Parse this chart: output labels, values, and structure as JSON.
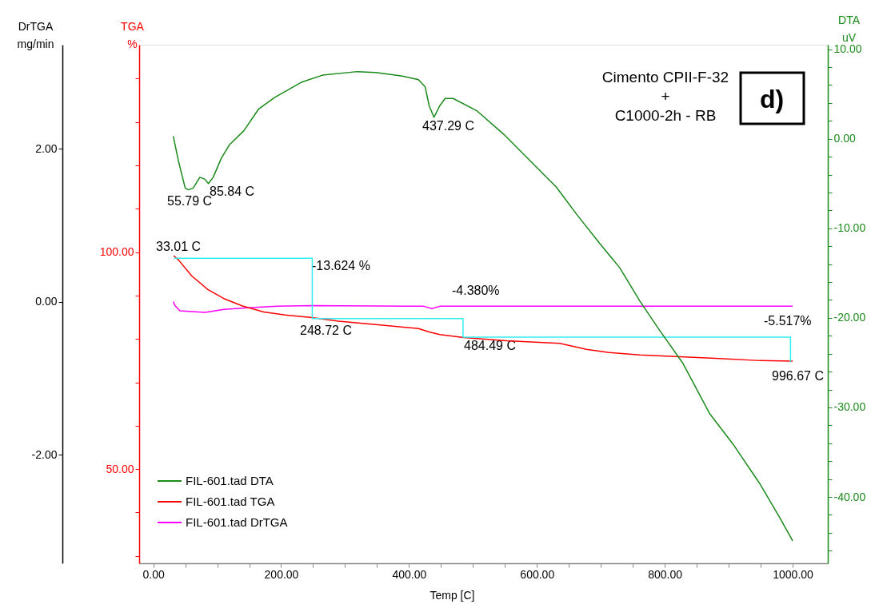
{
  "chart_data": {
    "type": "line",
    "xlabel": "Temp [C]",
    "ylabel": "DrTGA\nmg/min",
    "y2label": "TGA\n%",
    "y3label": "DTA\nuV",
    "xlim": [
      -22,
      1055
    ],
    "ylim": [
      -3.42,
      3.36
    ],
    "y2lim": [
      28.3,
      147.8
    ],
    "y3lim": [
      -47.4,
      10.5
    ],
    "xticks": [
      {
        "value": 0,
        "label": "0.00"
      },
      {
        "value": 50,
        "label": null
      },
      {
        "value": 100,
        "label": null
      },
      {
        "value": 150,
        "label": null
      },
      {
        "value": 200,
        "label": "200.00"
      },
      {
        "value": 250,
        "label": null
      },
      {
        "value": 300,
        "label": null
      },
      {
        "value": 350,
        "label": null
      },
      {
        "value": 400,
        "label": "400.00"
      },
      {
        "value": 450,
        "label": null
      },
      {
        "value": 500,
        "label": null
      },
      {
        "value": 550,
        "label": null
      },
      {
        "value": 600,
        "label": "600.00"
      },
      {
        "value": 650,
        "label": null
      },
      {
        "value": 700,
        "label": null
      },
      {
        "value": 750,
        "label": null
      },
      {
        "value": 800,
        "label": "800.00"
      },
      {
        "value": 850,
        "label": null
      },
      {
        "value": 900,
        "label": null
      },
      {
        "value": 950,
        "label": null
      },
      {
        "value": 1000,
        "label": "1000.00"
      }
    ],
    "yticks": [
      {
        "value": -2,
        "label": "-2.00"
      },
      {
        "value": 0,
        "label": "0.00"
      },
      {
        "value": 2,
        "label": "2.00"
      }
    ],
    "y2ticks": [
      {
        "value": 30,
        "label": null
      },
      {
        "value": 40,
        "label": null
      },
      {
        "value": 50,
        "label": "50.00"
      },
      {
        "value": 60,
        "label": null
      },
      {
        "value": 70,
        "label": null
      },
      {
        "value": 80,
        "label": null
      },
      {
        "value": 90,
        "label": null
      },
      {
        "value": 100,
        "label": "100.00"
      },
      {
        "value": 110,
        "label": null
      },
      {
        "value": 120,
        "label": null
      },
      {
        "value": 130,
        "label": null
      },
      {
        "value": 140,
        "label": null
      }
    ],
    "y3ticks": [
      {
        "value": -46,
        "label": null
      },
      {
        "value": -44,
        "label": null
      },
      {
        "value": -42,
        "label": null
      },
      {
        "value": -40,
        "label": "-40.00"
      },
      {
        "value": -38,
        "label": null
      },
      {
        "value": -36,
        "label": null
      },
      {
        "value": -34,
        "label": null
      },
      {
        "value": -32,
        "label": null
      },
      {
        "value": -30,
        "label": "-30.00"
      },
      {
        "value": -28,
        "label": null
      },
      {
        "value": -26,
        "label": null
      },
      {
        "value": -24,
        "label": null
      },
      {
        "value": -22,
        "label": null
      },
      {
        "value": -20,
        "label": "-20.00"
      },
      {
        "value": -18,
        "label": null
      },
      {
        "value": -16,
        "label": null
      },
      {
        "value": -14,
        "label": null
      },
      {
        "value": -12,
        "label": null
      },
      {
        "value": -10,
        "label": "-10.00"
      },
      {
        "value": -8,
        "label": null
      },
      {
        "value": -6,
        "label": null
      },
      {
        "value": -4,
        "label": null
      },
      {
        "value": -2,
        "label": null
      },
      {
        "value": 0,
        "label": "0.00"
      },
      {
        "value": 2,
        "label": null
      },
      {
        "value": 4,
        "label": null
      },
      {
        "value": 6,
        "label": null
      },
      {
        "value": 8,
        "label": null
      },
      {
        "value": 10,
        "label": "10.00"
      }
    ],
    "grid": false,
    "legend": "bottom left",
    "series": [
      {
        "name": "FIL-601.tad   DTA",
        "color": "#1a8a1a",
        "axis": "y3",
        "x": [
          31.3,
          39.5,
          50,
          55.0,
          62.5,
          72.9,
          80.4,
          86.3,
          93.8,
          106.3,
          118.8,
          141.7,
          164.6,
          189.6,
          231.4,
          264.7,
          319.0,
          348.1,
          389.7,
          414.8,
          425.3,
          431.5,
          439.0,
          448.2,
          456.5,
          469.0,
          506.6,
          548.2,
          594.1,
          630.5,
          661.8,
          698.3,
          729.6,
          760.9,
          792.1,
          828.6,
          870.3,
          906.8,
          948.5,
          979.8,
          1000
        ],
        "values": [
          0.3,
          -2.5,
          -5.5,
          -5.7,
          -5.5,
          -4.3,
          -4.5,
          -5.0,
          -4.3,
          -2.2,
          -0.7,
          0.9,
          3.3,
          4.6,
          6.3,
          7.1,
          7.5,
          7.4,
          7.0,
          6.6,
          5.8,
          3.7,
          2.4,
          3.7,
          4.5,
          4.5,
          3.1,
          0.5,
          -2.8,
          -5.4,
          -8.4,
          -11.7,
          -14.4,
          -18.1,
          -21.4,
          -25.1,
          -30.7,
          -34.1,
          -38.5,
          -42.3,
          -44.9
        ]
      },
      {
        "name": "FIL-601.tad   TGA",
        "color": "#ff0000",
        "axis": "y2",
        "x": [
          32.0,
          39.5,
          60.4,
          85.4,
          110.4,
          139.6,
          173.0,
          206.4,
          248.0,
          289.7,
          348.1,
          414.8,
          431.5,
          448.2,
          485.7,
          552.4,
          635.8,
          677.4,
          710.8,
          760.9,
          823.4,
          886.0,
          948.6,
          1000
        ],
        "values": [
          99.2,
          98.2,
          94.5,
          91.4,
          89.3,
          87.6,
          86.2,
          85.5,
          84.9,
          84.1,
          83.3,
          82.4,
          81.6,
          81.0,
          80.3,
          79.6,
          79.0,
          77.6,
          76.9,
          76.3,
          75.9,
          75.5,
          75.0,
          74.9
        ]
      },
      {
        "name": "FIL-601.tad   DrTGA",
        "color": "#ff00ff",
        "axis": "y",
        "x": [
          31.3,
          34,
          41.7,
          81.3,
          110.4,
          148.0,
          193.9,
          248,
          423.1,
          435.7,
          448.2,
          1000
        ],
        "values": [
          0.0,
          -0.05,
          -0.12,
          -0.14,
          -0.1,
          -0.08,
          -0.06,
          -0.05,
          -0.06,
          -0.09,
          -0.06,
          -0.06
        ]
      },
      {
        "color": "#33eeee",
        "axis": "y2",
        "x": [
          33.01,
          248.72,
          248.72,
          484.49,
          484.49,
          996.67,
          996.67
        ],
        "values": [
          98.6,
          98.6,
          84.7,
          84.7,
          80.4,
          80.4,
          74.6
        ]
      }
    ],
    "annotations": [
      "55.79 C",
      "85.84 C",
      "437.29 C",
      "33.01 C",
      "-13.624 %",
      "-4.380%",
      "248.72 C",
      "484.49 C",
      "-5.517%",
      "996.67 C",
      "Cimento CPII-F-32\n+\nC1000-2h - RB",
      "d)"
    ]
  }
}
